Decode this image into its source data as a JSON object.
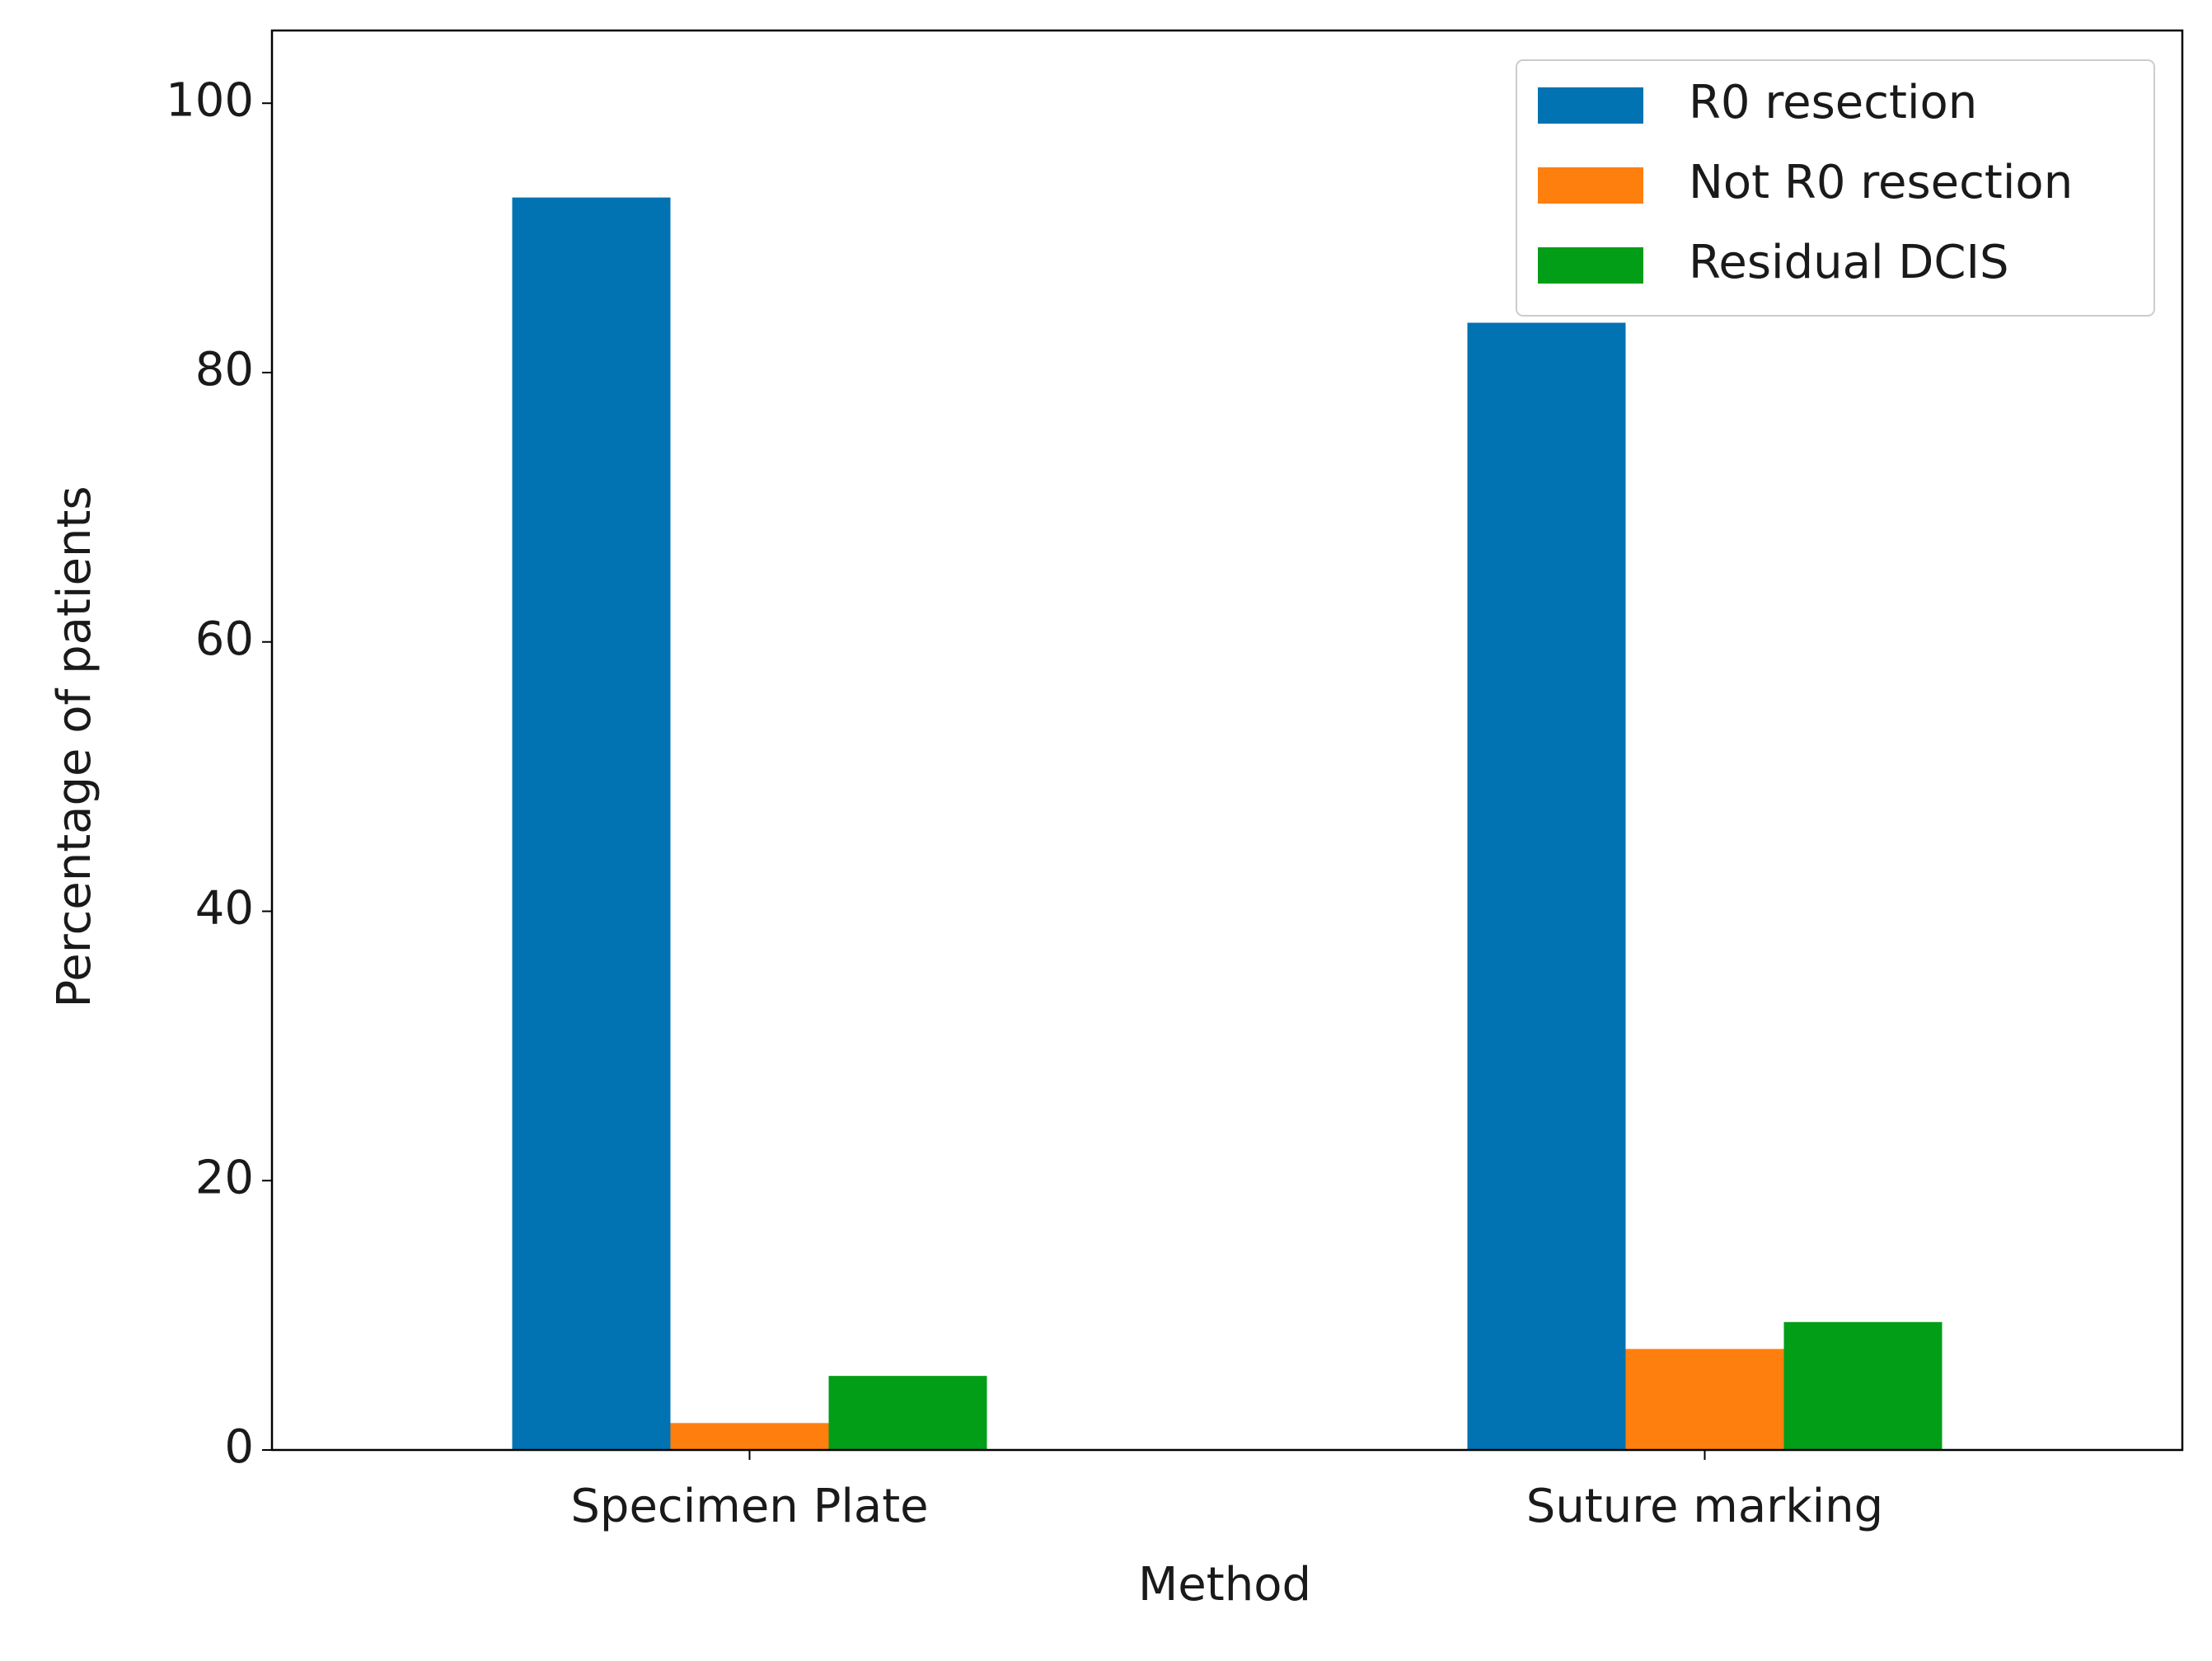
{
  "chart_data": {
    "type": "bar",
    "categories": [
      "Specimen Plate",
      "Suture marking"
    ],
    "series": [
      {
        "name": "R0 resection",
        "color": "#0173b2",
        "values": [
          93,
          83.7
        ]
      },
      {
        "name": "Not R0 resection",
        "color": "#ff7f0e",
        "values": [
          2,
          7.5
        ]
      },
      {
        "name": "Residual DCIS",
        "color": "#029e18",
        "values": [
          5.5,
          9.5
        ]
      }
    ],
    "x_label": "Method",
    "y_label": "Percentage of patients",
    "ylim": [
      0,
      105.4
    ],
    "yticks": [
      0,
      20,
      40,
      60,
      80,
      100
    ],
    "grid": false,
    "legend": "upper right"
  }
}
